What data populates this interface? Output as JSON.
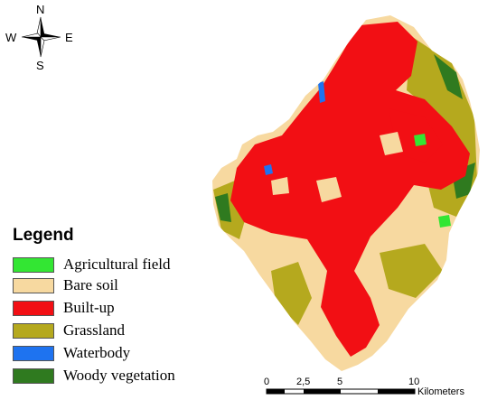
{
  "compass": {
    "north": "N",
    "south": "S",
    "east": "E",
    "west": "W"
  },
  "legend": {
    "title": "Legend",
    "items": [
      {
        "label": "Agricultural field",
        "color": "#33e633"
      },
      {
        "label": "Bare soil",
        "color": "#f7d9a0"
      },
      {
        "label": "Built-up",
        "color": "#f20f14"
      },
      {
        "label": "Grassland",
        "color": "#b5a91e"
      },
      {
        "label": "Waterbody",
        "color": "#1e73f0"
      },
      {
        "label": "Woody vegetation",
        "color": "#2f7a1f"
      }
    ]
  },
  "scale_bar": {
    "ticks": [
      "0",
      "2,5",
      "5",
      "10"
    ],
    "unit": "Kilometers"
  }
}
